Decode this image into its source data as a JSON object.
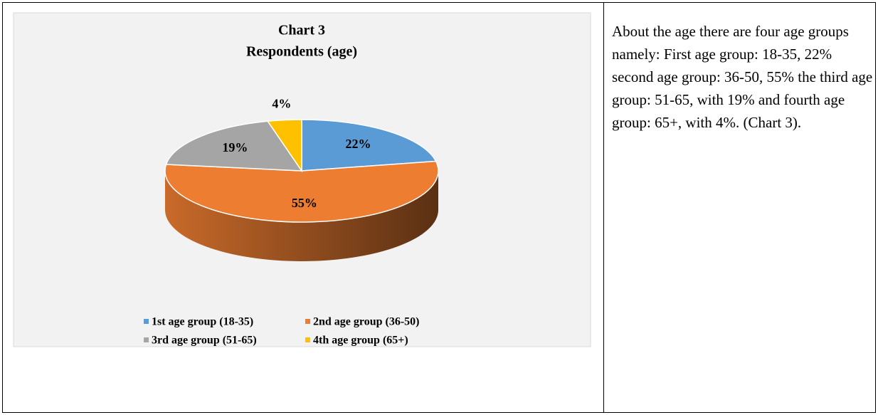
{
  "chart_data": {
    "type": "pie",
    "title": "Chart 3",
    "subtitle": "Respondents (age)",
    "categories": [
      "1st age group (18-35)",
      "2nd age group (36-50)",
      "3rd age group (51-65)",
      "4th age group (65+)"
    ],
    "values": [
      22,
      55,
      19,
      4
    ],
    "value_labels": [
      "22%",
      "55%",
      "19%",
      "4%"
    ],
    "colors": [
      "#5b9bd5",
      "#ed7d31",
      "#a5a5a5",
      "#ffc000"
    ],
    "legend": "bottom"
  },
  "text": "About the age there are four age groups namely: First age group: 18-35, 22% second age group: 36-50, 55% the third age group: 51-65, with 19% and fourth age group: 65+, with 4%. (Chart 3)."
}
